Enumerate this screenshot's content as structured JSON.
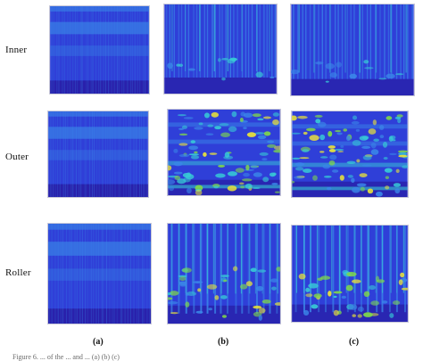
{
  "rows": [
    {
      "label": "Inner"
    },
    {
      "label": "Outer"
    },
    {
      "label": "Roller"
    }
  ],
  "columns": [
    {
      "label": "(a)"
    },
    {
      "label": "(b)"
    },
    {
      "label": "(c)"
    }
  ],
  "caption": "Figure 6. ... of the ... and ... (a) (b) (c)",
  "colors": {
    "deep": "#27169a",
    "base": "#2f3fd8",
    "mid": "#3a86e8",
    "cyan": "#37c9d6",
    "green": "#7fd84a",
    "yellow": "#e8e23a"
  }
}
